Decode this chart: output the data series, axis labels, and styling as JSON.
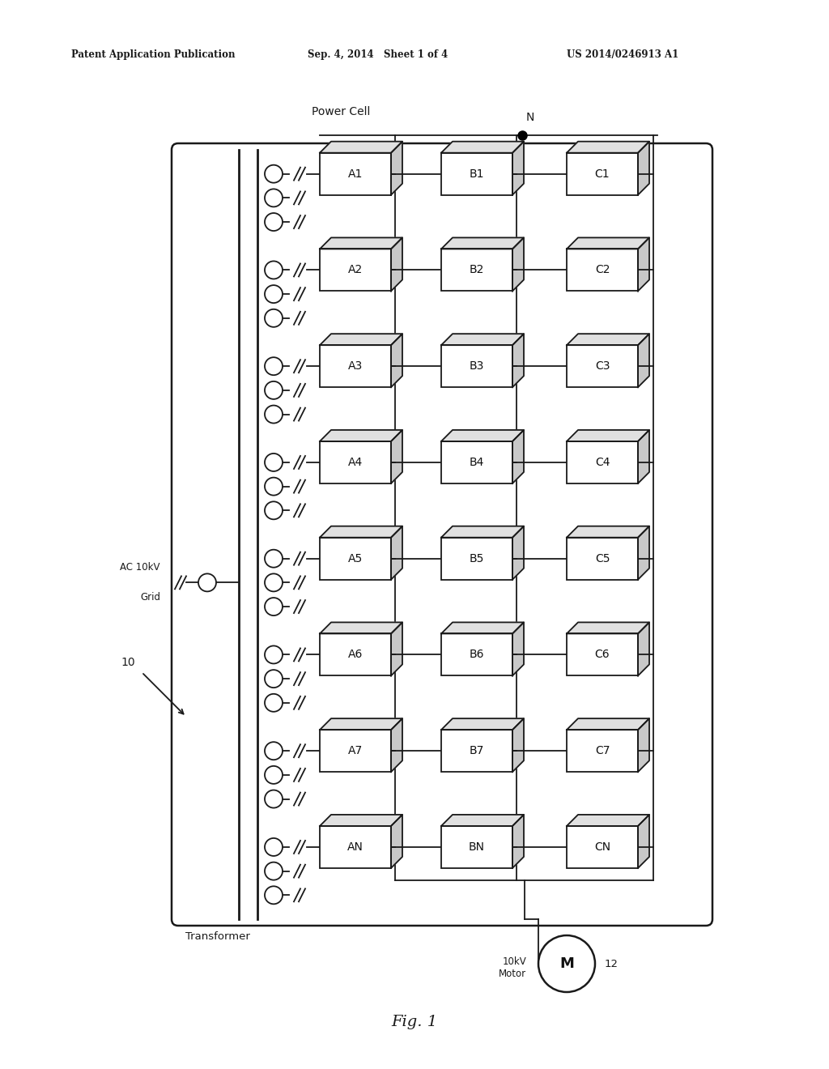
{
  "bg_color": "#ffffff",
  "header_text": "Patent Application Publication",
  "header_date": "Sep. 4, 2014   Sheet 1 of 4",
  "header_patent": "US 2014/0246913 A1",
  "power_cell_label": "Power Cell",
  "N_label": "N",
  "transformer_label": "Transformer",
  "ac_label": "AC 10kV\nGrid",
  "motor_label": "10kV\nMotor",
  "motor_id": "M",
  "fig_label": "Fig. 1",
  "ref_10": "10",
  "ref_12": "12",
  "rows": [
    "1",
    "2",
    "3",
    "4",
    "5",
    "6",
    "7",
    "N"
  ],
  "cols": [
    "A",
    "B",
    "C"
  ],
  "line_color": "#1a1a1a",
  "box_face": "#ffffff",
  "box_top_face": "#e0e0e0",
  "box_right_face": "#c8c8c8"
}
